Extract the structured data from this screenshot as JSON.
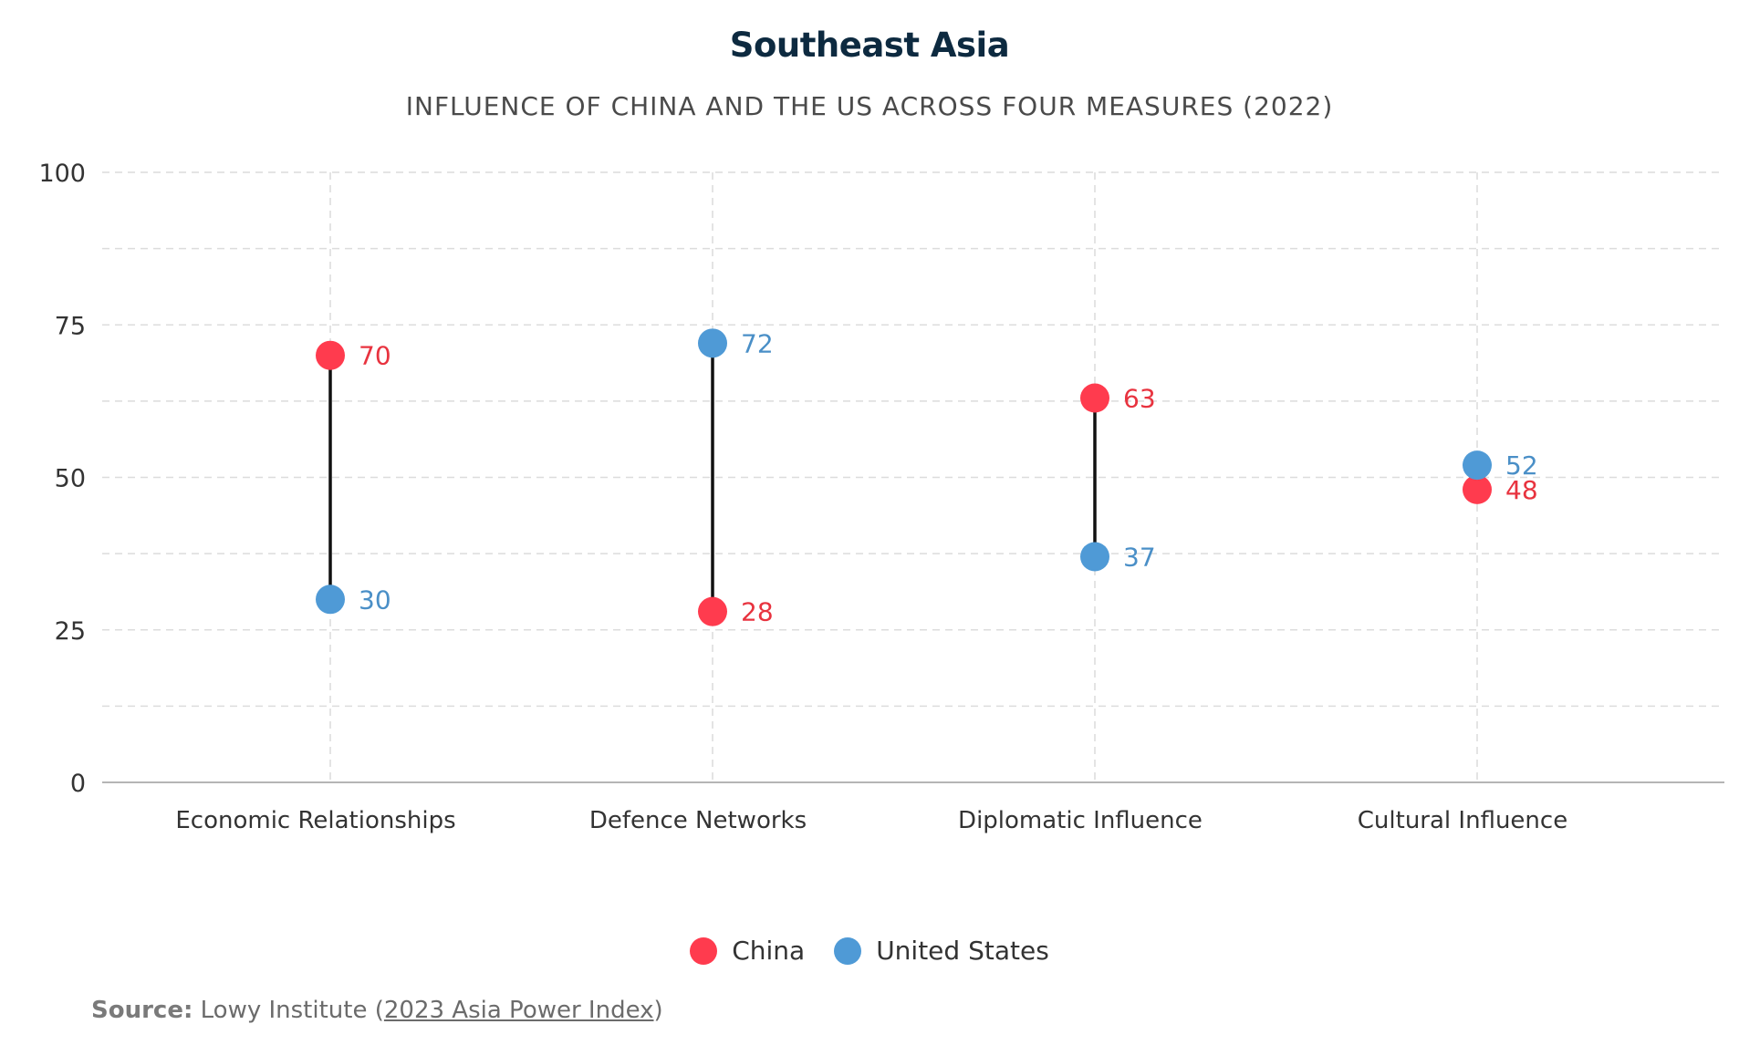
{
  "chart_data": {
    "type": "dumbbell",
    "title": "Southeast Asia",
    "subtitle": "INFLUENCE OF CHINA AND THE US ACROSS FOUR MEASURES (2022)",
    "categories": [
      "Economic Relationships",
      "Defence Networks",
      "Diplomatic Influence",
      "Cultural Influence"
    ],
    "series": [
      {
        "name": "China",
        "color": "#ff3b4e",
        "label_color": "#e8333f",
        "values": [
          70,
          28,
          63,
          48
        ]
      },
      {
        "name": "United States",
        "color": "#4f9ad6",
        "label_color": "#4a8fc7",
        "values": [
          30,
          72,
          37,
          52
        ]
      }
    ],
    "ylim": [
      0,
      100
    ],
    "yticks": [
      0,
      25,
      50,
      75,
      100
    ],
    "grid": true,
    "legend_position": "bottom-center",
    "connector_color": "#111111"
  },
  "source": {
    "label": "Source:",
    "text_before": "Lowy Institute (",
    "link_text": "2023 Asia Power Index",
    "text_after": ")"
  }
}
